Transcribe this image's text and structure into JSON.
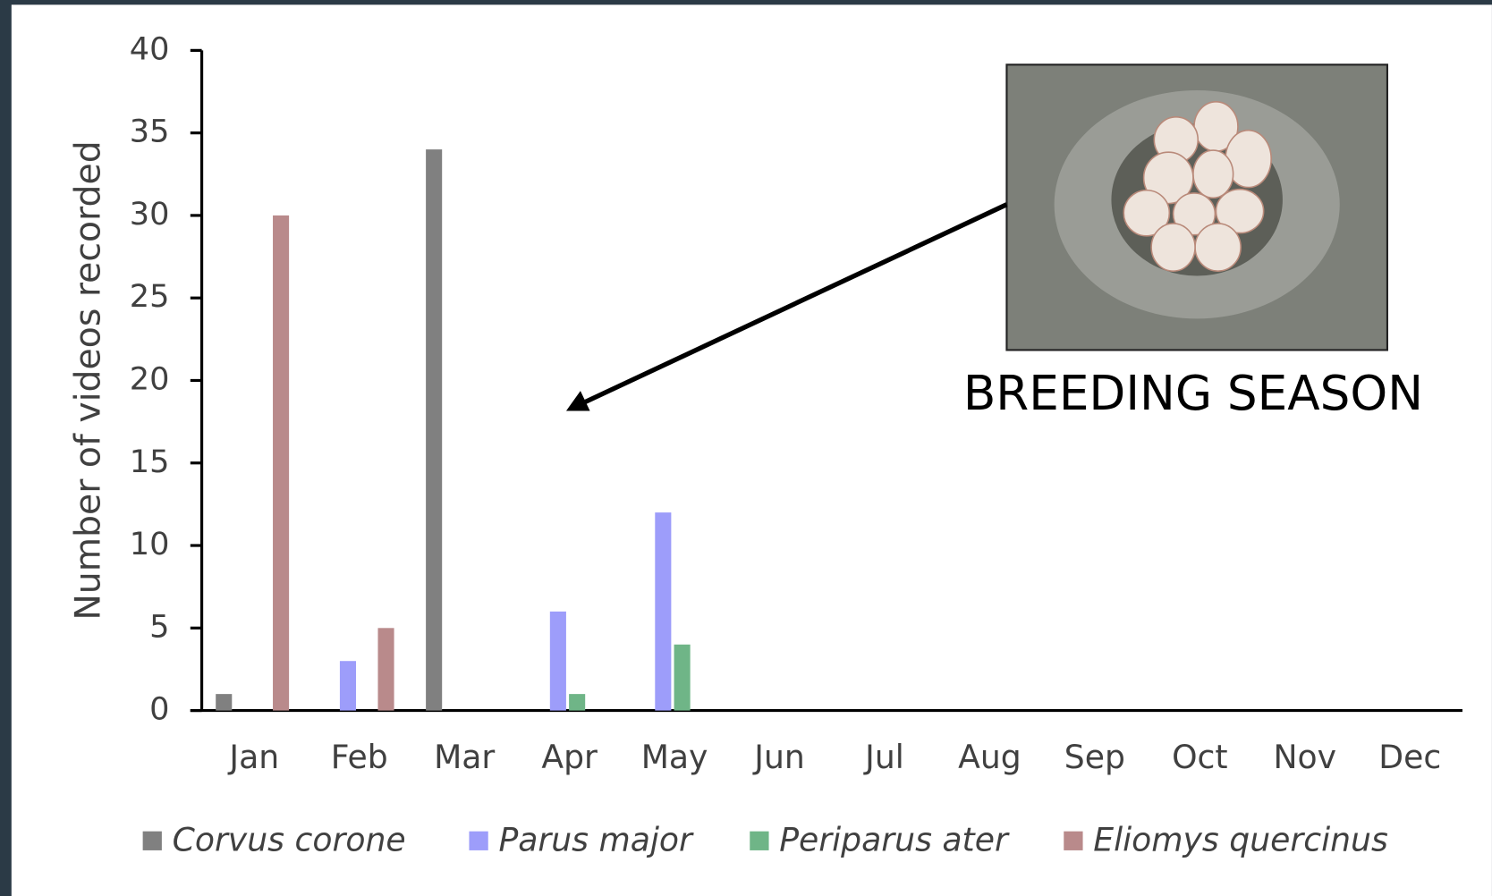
{
  "chart_data": {
    "type": "bar",
    "ylabel": "Number of videos recorded",
    "annotation": "BREEDING SEASON",
    "categories": [
      "Jan",
      "Feb",
      "Mar",
      "Apr",
      "May",
      "Jun",
      "Jul",
      "Aug",
      "Sep",
      "Oct",
      "Nov",
      "Dec"
    ],
    "series": [
      {
        "name": "Corvus corone",
        "color": "#808080",
        "values": [
          1,
          0,
          34,
          0,
          0,
          0,
          0,
          0,
          0,
          0,
          0,
          0
        ]
      },
      {
        "name": "Parus major",
        "color": "#9d9dfa",
        "values": [
          0,
          3,
          0,
          6,
          12,
          0,
          0,
          0,
          0,
          0,
          0,
          0
        ]
      },
      {
        "name": "Periparus ater",
        "color": "#6fb587",
        "values": [
          0,
          0,
          0,
          1,
          4,
          0,
          0,
          0,
          0,
          0,
          0,
          0
        ]
      },
      {
        "name": "Eliomys quercinus",
        "color": "#b98a8b",
        "values": [
          30,
          5,
          0,
          0,
          0,
          0,
          0,
          0,
          0,
          0,
          0,
          0
        ]
      }
    ],
    "ylim": [
      0,
      40
    ],
    "yticks": [
      0,
      5,
      10,
      15,
      20,
      25,
      30,
      35,
      40
    ],
    "grid": false,
    "legend": "bottom"
  }
}
